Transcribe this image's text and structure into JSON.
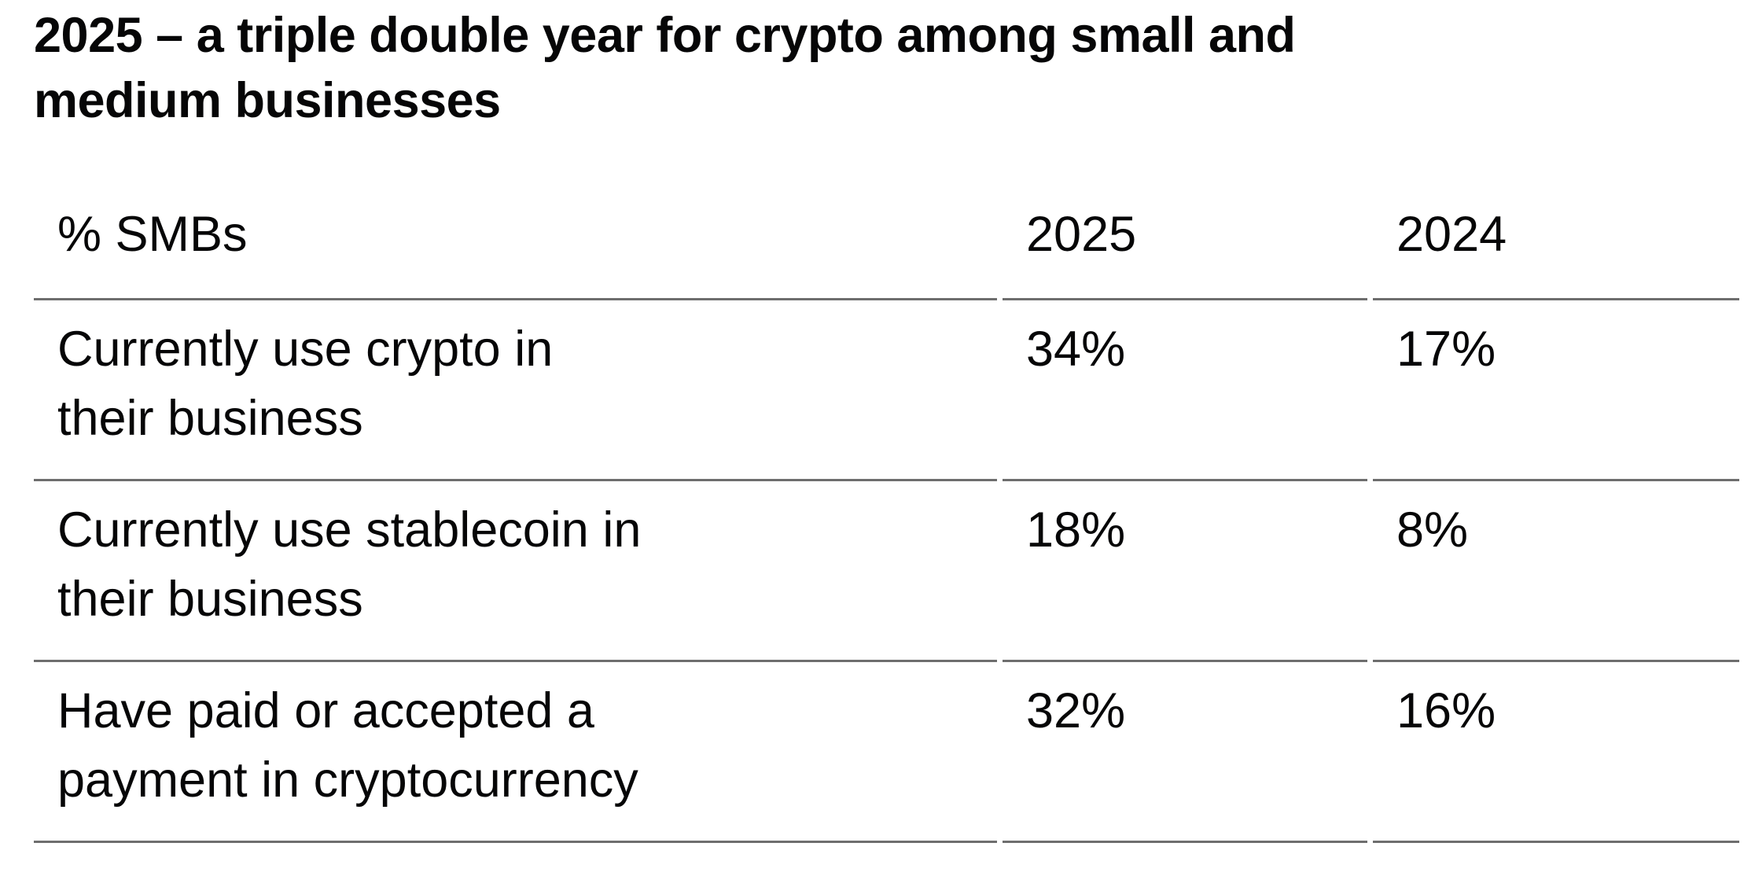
{
  "title": "2025 – a triple double year for crypto among small and\nmedium businesses",
  "table": {
    "columns": [
      "% SMBs",
      "2025",
      "2024"
    ],
    "rows": [
      {
        "label": "Currently use crypto in\ntheir business",
        "v2025": "34%",
        "v2024": "17%"
      },
      {
        "label": "Currently use stablecoin in\ntheir business",
        "v2025": "18%",
        "v2024": "8%"
      },
      {
        "label": "Have paid or accepted a\npayment in cryptocurrency",
        "v2025": "32%",
        "v2024": "16%"
      }
    ]
  },
  "colors": {
    "background": "#ffffff",
    "text": "#060607",
    "divider": "#6e6e6e"
  },
  "chart_data": {
    "type": "table",
    "title": "2025 – a triple double year for crypto among small and medium businesses",
    "unit_label": "% SMBs",
    "categories": [
      "Currently use crypto in their business",
      "Currently use stablecoin in their business",
      "Have paid or accepted a payment in cryptocurrency"
    ],
    "series": [
      {
        "name": "2025",
        "values": [
          34,
          18,
          32
        ]
      },
      {
        "name": "2024",
        "values": [
          17,
          8,
          16
        ]
      }
    ]
  }
}
